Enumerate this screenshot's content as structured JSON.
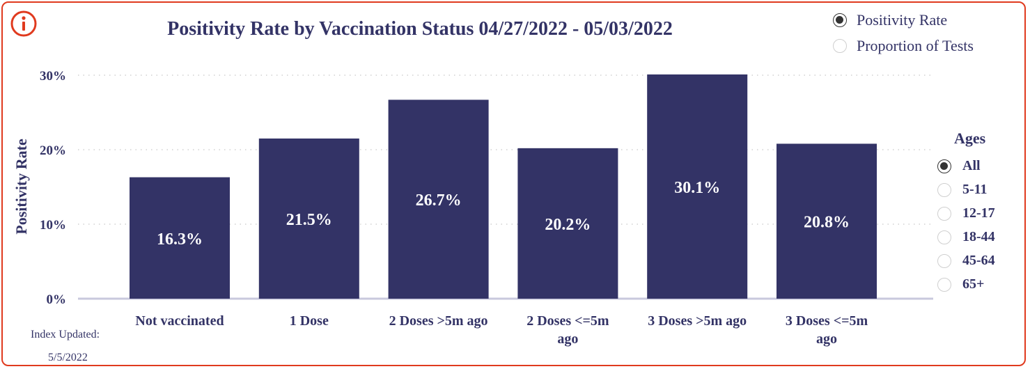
{
  "chart_data": {
    "type": "bar",
    "title": "Positivity Rate by Vaccination Status 04/27/2022 - 05/03/2022",
    "ylabel": "Positivity Rate",
    "ylim": [
      0,
      30
    ],
    "yticks": [
      "0%",
      "10%",
      "20%",
      "30%"
    ],
    "categories": [
      "Not vaccinated",
      "1 Dose",
      "2 Doses >5m ago",
      "2 Doses <=5m ago",
      "3 Doses >5m ago",
      "3 Doses <=5m ago"
    ],
    "values": [
      16.3,
      21.5,
      26.7,
      20.2,
      30.1,
      20.8
    ],
    "data_labels": [
      "16.3%",
      "21.5%",
      "26.7%",
      "20.2%",
      "30.1%",
      "20.8%"
    ],
    "grid": "horizontal-dotted",
    "bar_color": "#333366"
  },
  "metric_options": [
    {
      "label": "Positivity Rate",
      "selected": true
    },
    {
      "label": "Proportion of Tests",
      "selected": false
    }
  ],
  "ages": {
    "title": "Ages",
    "options": [
      {
        "label": "All",
        "selected": true
      },
      {
        "label": "5-11",
        "selected": false
      },
      {
        "label": "12-17",
        "selected": false
      },
      {
        "label": "18-44",
        "selected": false
      },
      {
        "label": "45-64",
        "selected": false
      },
      {
        "label": "65+",
        "selected": false
      }
    ]
  },
  "footer": {
    "index_updated_label": "Index Updated:",
    "index_updated_date": "5/5/2022"
  },
  "colors": {
    "accent": "#e03a1e",
    "text": "#333366"
  }
}
